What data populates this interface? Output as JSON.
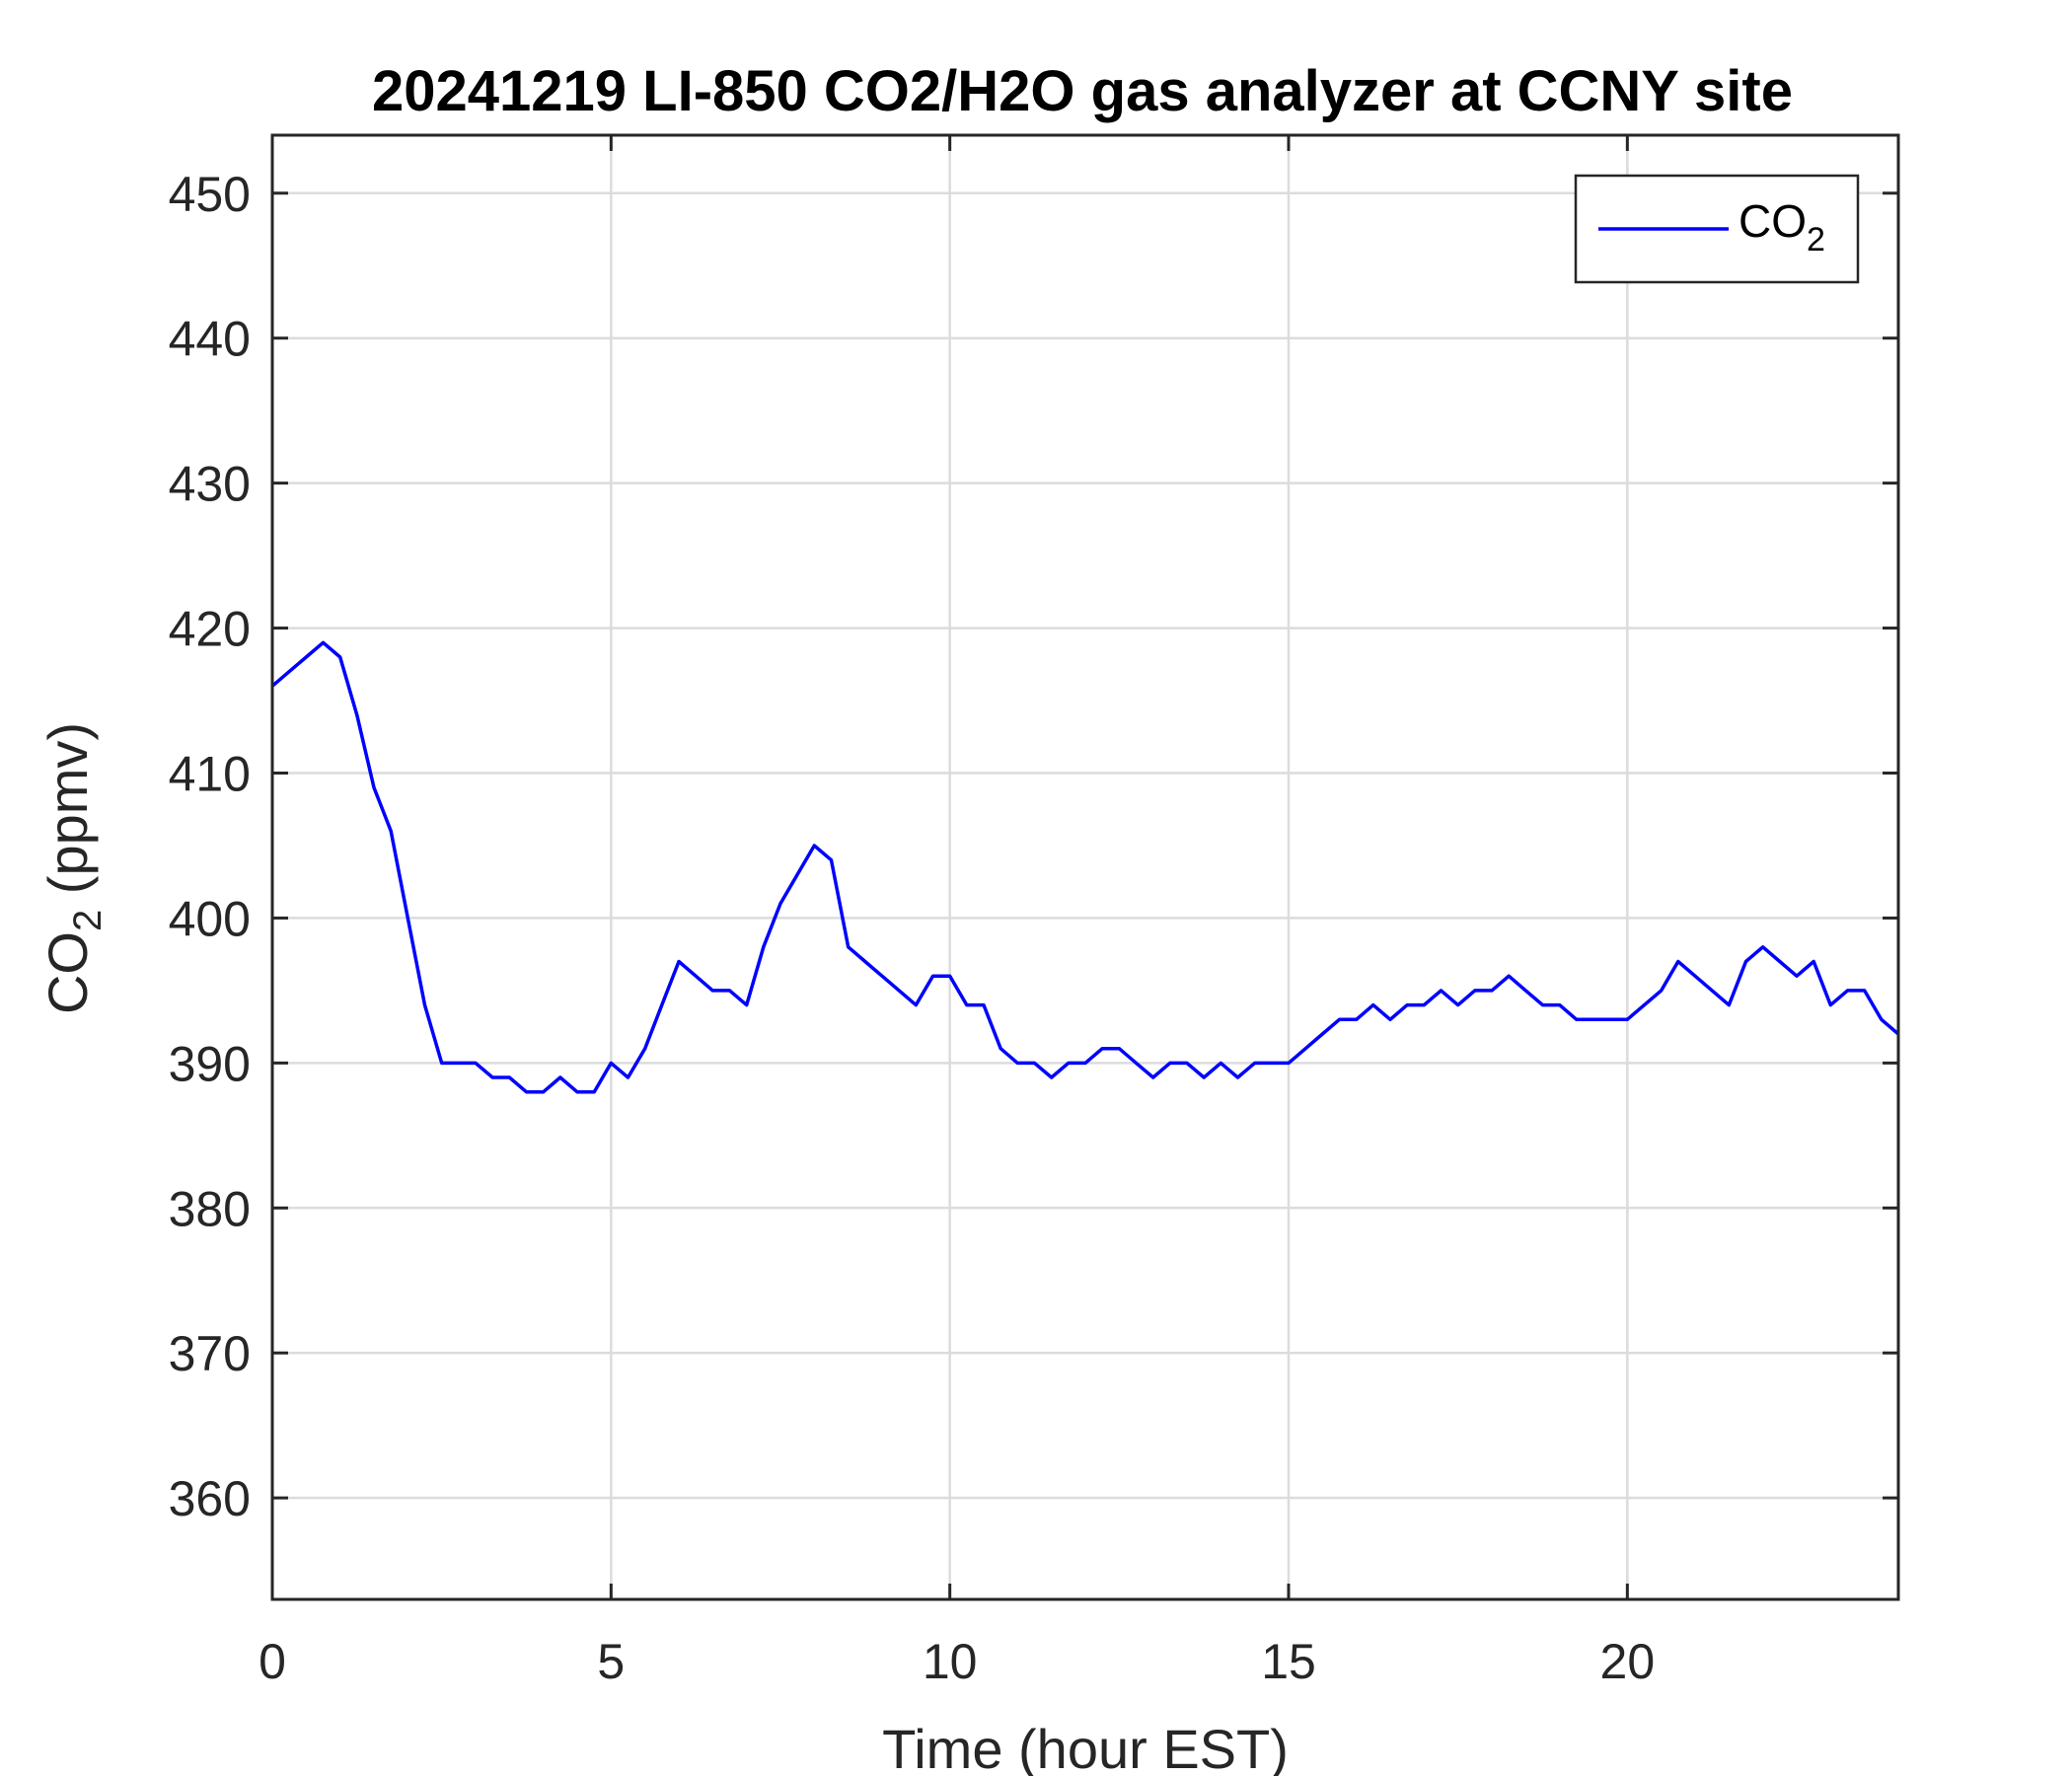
{
  "chart_data": {
    "type": "line",
    "title": "20241219 LI-850 CO2/H2O gas analyzer at CCNY site",
    "xlabel": "Time (hour EST)",
    "ylabel": {
      "base": "CO",
      "subscript": "2",
      "suffix": " (ppmv)"
    },
    "xlim": [
      0,
      24
    ],
    "ylim": [
      353,
      454
    ],
    "xticks": [
      0,
      5,
      10,
      15,
      20
    ],
    "yticks": [
      360,
      370,
      380,
      390,
      400,
      410,
      420,
      430,
      440,
      450
    ],
    "grid": true,
    "legend": {
      "position": "top-right",
      "label": {
        "base": "CO",
        "subscript": "2"
      }
    },
    "series": [
      {
        "name": "CO2",
        "color": "#0000ff",
        "x": [
          0,
          0.25,
          0.5,
          0.75,
          1.0,
          1.25,
          1.5,
          1.75,
          2.0,
          2.25,
          2.5,
          2.75,
          3.0,
          3.25,
          3.5,
          3.75,
          4.0,
          4.25,
          4.5,
          4.75,
          5.0,
          5.25,
          5.5,
          5.75,
          6.0,
          6.25,
          6.5,
          6.75,
          7.0,
          7.25,
          7.5,
          7.75,
          8.0,
          8.25,
          8.5,
          8.75,
          9.0,
          9.25,
          9.5,
          9.75,
          10.0,
          10.25,
          10.5,
          10.75,
          11.0,
          11.25,
          11.5,
          11.75,
          12.0,
          12.25,
          12.5,
          12.75,
          13.0,
          13.25,
          13.5,
          13.75,
          14.0,
          14.25,
          14.5,
          14.75,
          15.0,
          15.25,
          15.5,
          15.75,
          16.0,
          16.25,
          16.5,
          16.75,
          17.0,
          17.25,
          17.5,
          17.75,
          18.0,
          18.25,
          18.5,
          18.75,
          19.0,
          19.25,
          19.5,
          19.75,
          20.0,
          20.25,
          20.5,
          20.75,
          21.0,
          21.25,
          21.5,
          21.75,
          22.0,
          22.25,
          22.5,
          22.75,
          23.0,
          23.25,
          23.5,
          23.75,
          24.0
        ],
        "y": [
          416,
          417,
          418,
          419,
          418,
          414,
          409,
          406,
          400,
          394,
          390,
          390,
          390,
          389,
          389,
          388,
          388,
          389,
          388,
          388,
          390,
          389,
          391,
          394,
          397,
          396,
          395,
          395,
          394,
          398,
          401,
          403,
          405,
          404,
          398,
          397,
          396,
          395,
          394,
          396,
          396,
          394,
          394,
          391,
          390,
          390,
          389,
          390,
          390,
          391,
          391,
          390,
          389,
          390,
          390,
          389,
          390,
          389,
          390,
          390,
          390,
          391,
          392,
          393,
          393,
          394,
          393,
          394,
          394,
          395,
          394,
          395,
          395,
          396,
          395,
          394,
          394,
          393,
          393,
          393,
          393,
          394,
          395,
          397,
          396,
          395,
          394,
          397,
          398,
          397,
          396,
          397,
          394,
          395,
          395,
          393,
          392
        ]
      }
    ]
  }
}
